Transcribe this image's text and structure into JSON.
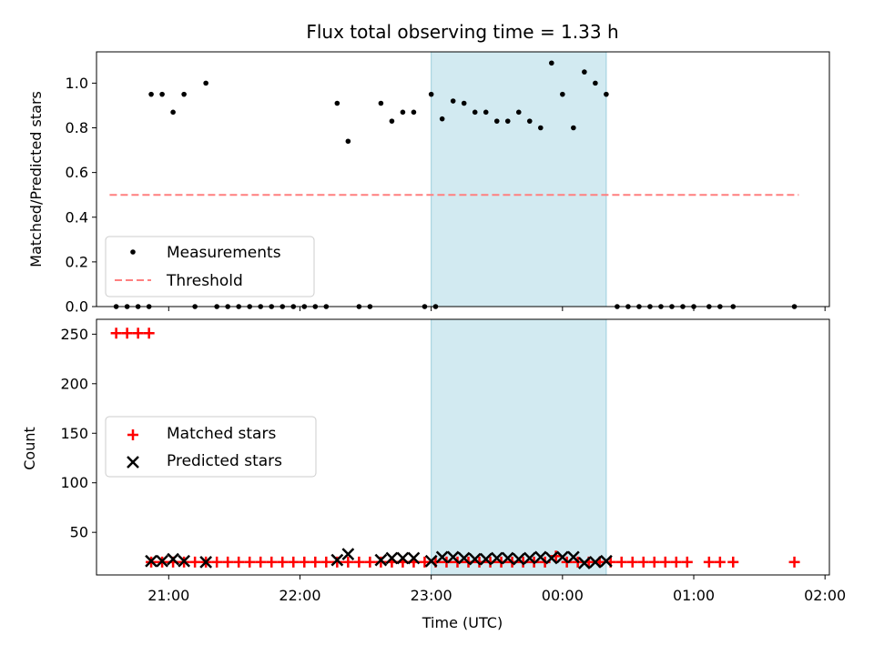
{
  "figure": {
    "title": "Flux total observing time = 1.33 h",
    "shade_color": "#add8e6",
    "shade_range": [
      "23:00",
      "00:20"
    ]
  },
  "chart_data": [
    {
      "type": "scatter",
      "name": "top-panel",
      "xlabel": "",
      "ylabel": "Matched/Predicted stars",
      "ylim": [
        0,
        1.14
      ],
      "yticks": [
        "0.0",
        "0.2",
        "0.4",
        "0.6",
        "0.8",
        "1.0"
      ],
      "x_unit": "time (UTC)",
      "xlim": [
        "20:27",
        "02:02"
      ],
      "grid": false,
      "legend_placement": "lower-left",
      "legend": [
        "Measurements",
        "Threshold"
      ],
      "threshold": {
        "value": 0.5,
        "x_range": [
          "20:33",
          "01:48"
        ],
        "color": "#ff7f7f",
        "style": "dashed"
      },
      "measurements": {
        "color": "#000000",
        "points": [
          [
            "20:36",
            0
          ],
          [
            "20:41",
            0
          ],
          [
            "20:46",
            0
          ],
          [
            "20:51",
            0
          ],
          [
            "20:52",
            0.95
          ],
          [
            "20:57",
            0.95
          ],
          [
            "21:02",
            0.87
          ],
          [
            "21:07",
            0.95
          ],
          [
            "21:12",
            0
          ],
          [
            "21:17",
            1.0
          ],
          [
            "21:22",
            0
          ],
          [
            "21:27",
            0
          ],
          [
            "21:32",
            0
          ],
          [
            "21:37",
            0
          ],
          [
            "21:42",
            0
          ],
          [
            "21:47",
            0
          ],
          [
            "21:52",
            0
          ],
          [
            "21:57",
            0
          ],
          [
            "22:02",
            0
          ],
          [
            "22:07",
            0
          ],
          [
            "22:12",
            0
          ],
          [
            "22:17",
            0.91
          ],
          [
            "22:22",
            0.74
          ],
          [
            "22:27",
            0
          ],
          [
            "22:32",
            0
          ],
          [
            "22:37",
            0.91
          ],
          [
            "22:42",
            0.83
          ],
          [
            "22:47",
            0.87
          ],
          [
            "22:52",
            0.87
          ],
          [
            "22:57",
            0
          ],
          [
            "23:00",
            0.95
          ],
          [
            "23:02",
            0
          ],
          [
            "23:05",
            0.84
          ],
          [
            "23:10",
            0.92
          ],
          [
            "23:15",
            0.91
          ],
          [
            "23:20",
            0.87
          ],
          [
            "23:25",
            0.87
          ],
          [
            "23:30",
            0.83
          ],
          [
            "23:35",
            0.83
          ],
          [
            "23:40",
            0.87
          ],
          [
            "23:45",
            0.83
          ],
          [
            "23:50",
            0.8
          ],
          [
            "23:55",
            1.09
          ],
          [
            "00:00",
            0.95
          ],
          [
            "00:05",
            0.8
          ],
          [
            "00:10",
            1.05
          ],
          [
            "00:15",
            1.0
          ],
          [
            "00:20",
            0.95
          ],
          [
            "00:25",
            0
          ],
          [
            "00:30",
            0
          ],
          [
            "00:35",
            0
          ],
          [
            "00:40",
            0
          ],
          [
            "00:45",
            0
          ],
          [
            "00:50",
            0
          ],
          [
            "00:55",
            0
          ],
          [
            "01:00",
            0
          ],
          [
            "01:07",
            0
          ],
          [
            "01:12",
            0
          ],
          [
            "01:18",
            0
          ],
          [
            "01:46",
            0
          ]
        ]
      }
    },
    {
      "type": "scatter",
      "name": "bottom-panel",
      "xlabel": "Time (UTC)",
      "ylabel": "Count",
      "ylim": [
        7,
        265
      ],
      "yticks": [
        "50",
        "100",
        "150",
        "200",
        "250"
      ],
      "xticks": [
        "21:00",
        "22:00",
        "23:00",
        "00:00",
        "01:00",
        "02:00"
      ],
      "xlim": [
        "20:27",
        "02:02"
      ],
      "grid": false,
      "legend_placement": "center-left",
      "legend": [
        "Matched stars",
        "Predicted stars"
      ],
      "matched": {
        "color": "#ff0000",
        "points": [
          [
            "20:36",
            251
          ],
          [
            "20:41",
            251
          ],
          [
            "20:46",
            251
          ],
          [
            "20:51",
            251
          ],
          [
            "20:52",
            20
          ],
          [
            "20:57",
            20
          ],
          [
            "21:02",
            20
          ],
          [
            "21:07",
            20
          ],
          [
            "21:12",
            20
          ],
          [
            "21:17",
            20
          ],
          [
            "21:22",
            20
          ],
          [
            "21:27",
            20
          ],
          [
            "21:32",
            20
          ],
          [
            "21:37",
            20
          ],
          [
            "21:42",
            20
          ],
          [
            "21:47",
            20
          ],
          [
            "21:52",
            20
          ],
          [
            "21:57",
            20
          ],
          [
            "22:02",
            20
          ],
          [
            "22:07",
            20
          ],
          [
            "22:12",
            20
          ],
          [
            "22:17",
            20
          ],
          [
            "22:22",
            20
          ],
          [
            "22:27",
            20
          ],
          [
            "22:32",
            20
          ],
          [
            "22:37",
            20
          ],
          [
            "22:42",
            20
          ],
          [
            "22:47",
            20
          ],
          [
            "22:52",
            20
          ],
          [
            "22:57",
            20
          ],
          [
            "23:02",
            20
          ],
          [
            "23:07",
            20
          ],
          [
            "23:12",
            20
          ],
          [
            "23:17",
            20
          ],
          [
            "23:22",
            20
          ],
          [
            "23:27",
            20
          ],
          [
            "23:32",
            20
          ],
          [
            "23:37",
            20
          ],
          [
            "23:42",
            20
          ],
          [
            "23:47",
            20
          ],
          [
            "23:52",
            20
          ],
          [
            "23:57",
            26
          ],
          [
            "00:02",
            20
          ],
          [
            "00:07",
            20
          ],
          [
            "00:12",
            20
          ],
          [
            "00:17",
            20
          ],
          [
            "00:22",
            20
          ],
          [
            "00:27",
            20
          ],
          [
            "00:32",
            20
          ],
          [
            "00:37",
            20
          ],
          [
            "00:42",
            20
          ],
          [
            "00:47",
            20
          ],
          [
            "00:52",
            20
          ],
          [
            "00:57",
            20
          ],
          [
            "01:07",
            20
          ],
          [
            "01:12",
            20
          ],
          [
            "01:18",
            20
          ],
          [
            "01:46",
            20
          ]
        ]
      },
      "predicted": {
        "color": "#000000",
        "points": [
          [
            "20:52",
            21
          ],
          [
            "20:57",
            21
          ],
          [
            "21:02",
            23
          ],
          [
            "21:07",
            21
          ],
          [
            "21:17",
            20
          ],
          [
            "22:17",
            22
          ],
          [
            "22:22",
            28
          ],
          [
            "22:37",
            22
          ],
          [
            "22:42",
            24
          ],
          [
            "22:47",
            24
          ],
          [
            "22:52",
            24
          ],
          [
            "23:00",
            21
          ],
          [
            "23:05",
            25
          ],
          [
            "23:10",
            25
          ],
          [
            "23:15",
            24
          ],
          [
            "23:20",
            23
          ],
          [
            "23:25",
            23
          ],
          [
            "23:30",
            24
          ],
          [
            "23:35",
            24
          ],
          [
            "23:40",
            23
          ],
          [
            "23:45",
            24
          ],
          [
            "23:50",
            25
          ],
          [
            "23:55",
            24
          ],
          [
            "00:00",
            25
          ],
          [
            "00:05",
            25
          ],
          [
            "00:10",
            19
          ],
          [
            "00:15",
            20
          ],
          [
            "00:20",
            21
          ]
        ]
      }
    }
  ]
}
